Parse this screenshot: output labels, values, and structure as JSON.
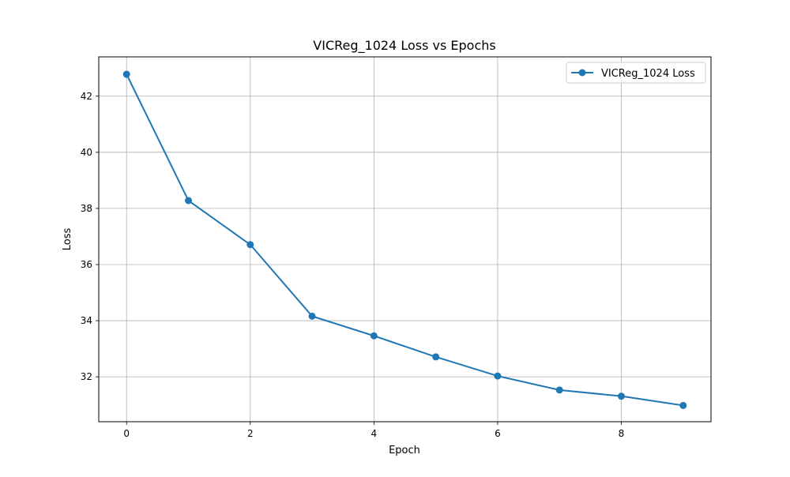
{
  "chart_data": {
    "type": "line",
    "title": "VICReg_1024 Loss vs Epochs",
    "xlabel": "Epoch",
    "ylabel": "Loss",
    "x": [
      0,
      1,
      2,
      3,
      4,
      5,
      6,
      7,
      8,
      9
    ],
    "series": [
      {
        "name": "VICReg_1024 Loss",
        "values": [
          42.78,
          38.28,
          36.71,
          34.16,
          33.46,
          32.71,
          32.03,
          31.53,
          31.31,
          30.98
        ],
        "color": "#1f77b4",
        "marker": "circle"
      }
    ],
    "xlim": [
      -0.45,
      9.45
    ],
    "ylim": [
      30.4,
      43.4
    ],
    "xticks": [
      0,
      2,
      4,
      6,
      8
    ],
    "xtick_labels": [
      "0",
      "2",
      "4",
      "6",
      "8"
    ],
    "yticks": [
      32,
      34,
      36,
      38,
      40,
      42
    ],
    "ytick_labels": [
      "32",
      "34",
      "36",
      "38",
      "40",
      "42"
    ],
    "grid": true,
    "legend_position": "top-right"
  }
}
